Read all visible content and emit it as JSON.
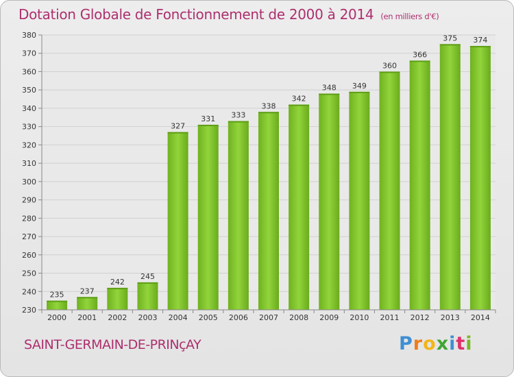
{
  "chart_data": {
    "type": "bar",
    "title": "Dotation Globale de Fonctionnement de 2000 à 2014",
    "subtitle": "(en milliers d'€)",
    "categories": [
      "2000",
      "2001",
      "2002",
      "2003",
      "2004",
      "2005",
      "2006",
      "2007",
      "2008",
      "2009",
      "2010",
      "2011",
      "2012",
      "2013",
      "2014"
    ],
    "values": [
      235,
      237,
      242,
      245,
      327,
      331,
      333,
      338,
      342,
      348,
      349,
      360,
      366,
      375,
      374
    ],
    "ylim": [
      230,
      380
    ],
    "yticks": [
      230,
      240,
      250,
      260,
      270,
      280,
      290,
      300,
      310,
      320,
      330,
      340,
      350,
      360,
      370,
      380
    ],
    "xlabel": "",
    "ylabel": "",
    "grid": true,
    "bar_color": "#7cbf26"
  },
  "footer": {
    "commune": "SAINT-GERMAIN-DE-PRINçAY",
    "logo_letters": [
      "P",
      "r",
      "o",
      "x",
      "i",
      "t",
      "i"
    ],
    "logo_colors": [
      "#3f8fd1",
      "#ef7d1a",
      "#f3b51b",
      "#3fa535",
      "#3f8fd1",
      "#e0306a",
      "#7ab827"
    ]
  }
}
